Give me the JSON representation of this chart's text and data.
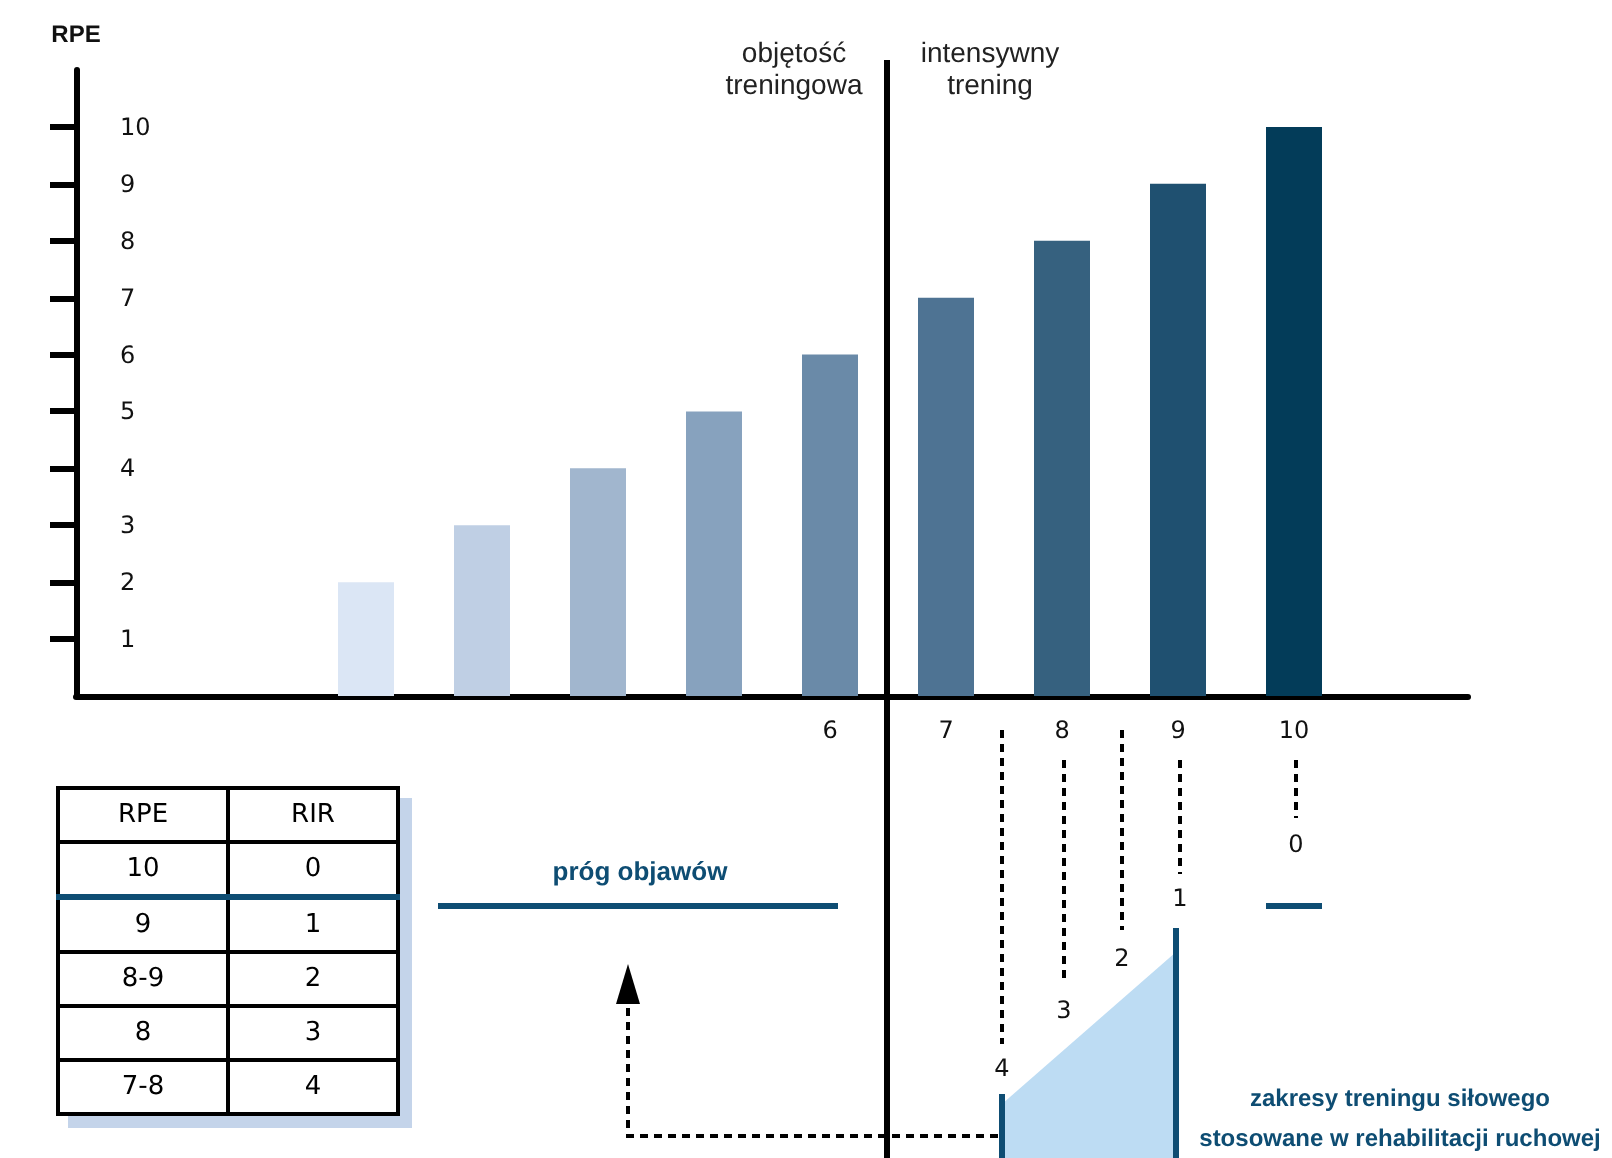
{
  "chart_data": {
    "type": "bar",
    "ylabel": "RPE",
    "categories": [
      null,
      null,
      null,
      null,
      null,
      null,
      "6",
      "7",
      "8",
      "9",
      "10",
      null
    ],
    "values": [
      null,
      null,
      2,
      3,
      4,
      5,
      6,
      7,
      8,
      9,
      10,
      null
    ],
    "colors": [
      "#dbe6f5",
      "#dbe6f5",
      "#dbe6f5",
      "#bfcfe4",
      "#a1b6ce",
      "#87a2be",
      "#6a8aa8",
      "#4e7393",
      "#36617f",
      "#1f5070",
      "#033c59",
      "#033c59"
    ],
    "ylim": [
      0,
      11
    ],
    "yticks": [
      1,
      2,
      3,
      4,
      5,
      6,
      7,
      8,
      9,
      10
    ],
    "grid": false,
    "annotations": [
      "objętość treningowa",
      "intensywny trening",
      "próg objawów",
      "zakresy treningu siłowego stosowane w rehabilitacji ruchowej",
      "RPE",
      "RIR",
      "10",
      "0",
      "9",
      "1",
      "8-9",
      "2",
      "8",
      "3",
      "7-8",
      "4",
      "4",
      "3",
      "2",
      "1",
      "0"
    ]
  }
}
